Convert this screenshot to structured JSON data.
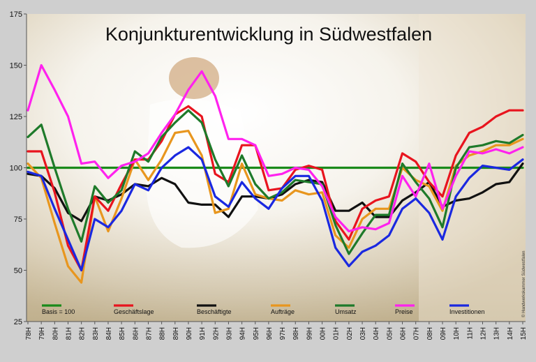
{
  "chart_data": {
    "type": "line",
    "title": "Konjunkturentwicklung in Südwestfalen",
    "credit": "© Handwerkskammer Südwestfalen",
    "ylim": [
      25,
      175
    ],
    "yticks": [
      25,
      50,
      75,
      100,
      125,
      150,
      175
    ],
    "x": [
      "78H",
      "79H",
      "80H",
      "81H",
      "82H",
      "83H",
      "84H",
      "85H",
      "86H",
      "87H",
      "88H",
      "89H",
      "90H",
      "91H",
      "92H",
      "93H",
      "94H",
      "95H",
      "96H",
      "97H",
      "98H",
      "99H",
      "00H",
      "01H",
      "02H",
      "03H",
      "04H",
      "05H",
      "06H",
      "07H",
      "08H",
      "09H",
      "10H",
      "11H",
      "12H",
      "13H",
      "14H",
      "15H"
    ],
    "series": [
      {
        "name": "Basis = 100",
        "color": "#1a8a1a",
        "values": [
          100,
          100,
          100,
          100,
          100,
          100,
          100,
          100,
          100,
          100,
          100,
          100,
          100,
          100,
          100,
          100,
          100,
          100,
          100,
          100,
          100,
          100,
          100,
          100,
          100,
          100,
          100,
          100,
          100,
          100,
          100,
          100,
          100,
          100,
          100,
          100,
          100,
          100
        ]
      },
      {
        "name": "Geschäftslage",
        "color": "#e8141e",
        "values": [
          108,
          108,
          88,
          62,
          50,
          86,
          79,
          92,
          104,
          104,
          113,
          126,
          130,
          125,
          97,
          93,
          111,
          111,
          89,
          90,
          99,
          101,
          99,
          74,
          65,
          80,
          84,
          86,
          107,
          103,
          93,
          86,
          106,
          117,
          120,
          125,
          128,
          128
        ]
      },
      {
        "name": "Beschäftigte",
        "color": "#111111",
        "values": [
          97,
          96,
          90,
          78,
          74,
          86,
          84,
          87,
          92,
          91,
          95,
          92,
          83,
          82,
          82,
          76,
          86,
          86,
          85,
          87,
          92,
          94,
          93,
          79,
          79,
          83,
          76,
          76,
          84,
          88,
          93,
          81,
          84,
          85,
          88,
          92,
          93,
          102
        ]
      },
      {
        "name": "Aufträge",
        "color": "#e8961e",
        "values": [
          102,
          95,
          73,
          52,
          44,
          86,
          69,
          85,
          104,
          94,
          104,
          117,
          118,
          106,
          78,
          80,
          102,
          87,
          85,
          84,
          89,
          87,
          88,
          67,
          61,
          75,
          80,
          80,
          100,
          94,
          91,
          79,
          101,
          106,
          108,
          111,
          111,
          114
        ]
      },
      {
        "name": "Umsatz",
        "color": "#1e7a2a",
        "values": [
          115,
          121,
          100,
          80,
          64,
          91,
          83,
          89,
          108,
          103,
          115,
          122,
          128,
          122,
          104,
          91,
          106,
          92,
          85,
          88,
          94,
          93,
          92,
          72,
          58,
          68,
          77,
          77,
          102,
          93,
          85,
          71,
          100,
          110,
          111,
          113,
          112,
          116
        ]
      },
      {
        "name": "Preise",
        "color": "#ff22ee",
        "values": [
          128,
          150,
          138,
          125,
          102,
          103,
          95,
          101,
          103,
          107,
          117,
          126,
          138,
          147,
          135,
          114,
          114,
          111,
          96,
          97,
          100,
          99,
          91,
          76,
          69,
          71,
          70,
          73,
          96,
          86,
          102,
          80,
          96,
          108,
          107,
          109,
          107,
          110
        ]
      },
      {
        "name": "Investitionen",
        "color": "#1a28e0",
        "values": [
          98,
          96,
          80,
          65,
          50,
          75,
          71,
          79,
          92,
          89,
          100,
          106,
          110,
          104,
          86,
          81,
          93,
          85,
          80,
          90,
          96,
          96,
          84,
          61,
          52,
          59,
          62,
          67,
          80,
          85,
          78,
          65,
          86,
          95,
          101,
          100,
          99,
          104
        ]
      }
    ]
  }
}
